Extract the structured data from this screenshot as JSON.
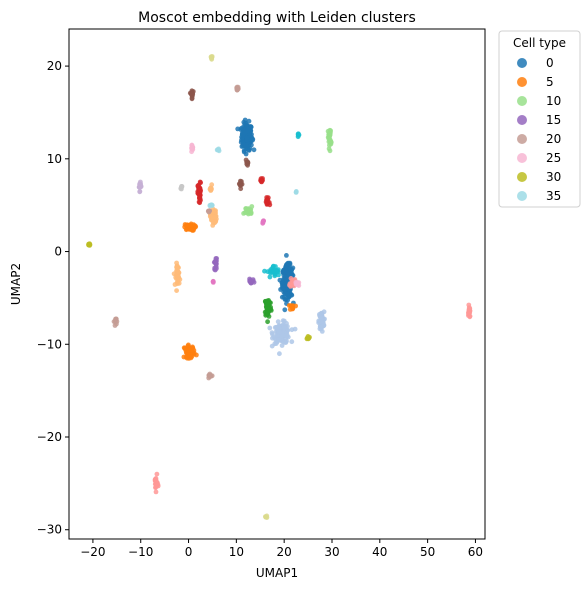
{
  "chart_data": {
    "type": "scatter",
    "title": "Moscot embedding with Leiden clusters",
    "xlabel": "UMAP1",
    "ylabel": "UMAP2",
    "xlim": [
      -25,
      62
    ],
    "ylim": [
      -31,
      24
    ],
    "xticks": [
      -20,
      -10,
      0,
      10,
      20,
      30,
      40,
      50,
      60
    ],
    "yticks": [
      -30,
      -20,
      -10,
      0,
      10,
      20
    ],
    "grid": false,
    "legend": {
      "title": "Cell type",
      "placement": "outside-top-right",
      "entries": [
        {
          "label": "0",
          "color": "#1f77b4"
        },
        {
          "label": "5",
          "color": "#ff7f0e"
        },
        {
          "label": "10",
          "color": "#98df8a"
        },
        {
          "label": "15",
          "color": "#9467bd"
        },
        {
          "label": "20",
          "color": "#c49c94"
        },
        {
          "label": "25",
          "color": "#f7b6d2"
        },
        {
          "label": "30",
          "color": "#bcbd22"
        },
        {
          "label": "35",
          "color": "#9edae5"
        }
      ]
    },
    "clusters": [
      {
        "color": "#1f77b4",
        "cx": 12.2,
        "cy": 12.4,
        "sx": 1.0,
        "sy": 1.3,
        "n": 200
      },
      {
        "color": "#1f77b4",
        "cx": 20.7,
        "cy": -3.3,
        "sx": 1.0,
        "sy": 1.6,
        "n": 230
      },
      {
        "color": "#aec7e8",
        "cx": 19.5,
        "cy": -8.8,
        "sx": 1.6,
        "sy": 1.0,
        "n": 110
      },
      {
        "color": "#aec7e8",
        "cx": 27.8,
        "cy": -7.5,
        "sx": 0.5,
        "sy": 0.9,
        "n": 60
      },
      {
        "color": "#2ca02c",
        "cx": 16.6,
        "cy": -6.0,
        "sx": 0.6,
        "sy": 1.0,
        "n": 60
      },
      {
        "color": "#17becf",
        "cx": 17.8,
        "cy": -2.2,
        "sx": 1.2,
        "sy": 0.6,
        "n": 30
      },
      {
        "color": "#ff9896",
        "cx": 21.8,
        "cy": -3.3,
        "sx": 0.5,
        "sy": 0.5,
        "n": 20
      },
      {
        "color": "#ff7f0e",
        "cx": 21.8,
        "cy": -6.0,
        "sx": 0.5,
        "sy": 0.3,
        "n": 10
      },
      {
        "color": "#bcbd22",
        "cx": 25.0,
        "cy": -9.2,
        "sx": 0.3,
        "sy": 0.2,
        "n": 8
      },
      {
        "color": "#ff7f0e",
        "cx": 0.2,
        "cy": 2.6,
        "sx": 1.0,
        "sy": 0.3,
        "n": 70
      },
      {
        "color": "#ffbb78",
        "cx": 5.2,
        "cy": 3.8,
        "sx": 0.6,
        "sy": 0.8,
        "n": 40
      },
      {
        "color": "#d62728",
        "cx": 2.3,
        "cy": 6.2,
        "sx": 0.3,
        "sy": 1.1,
        "n": 35
      },
      {
        "color": "#d62728",
        "cx": 16.5,
        "cy": 5.3,
        "sx": 0.4,
        "sy": 0.5,
        "n": 15
      },
      {
        "color": "#d62728",
        "cx": 15.3,
        "cy": 7.6,
        "sx": 0.3,
        "sy": 0.3,
        "n": 10
      },
      {
        "color": "#98df8a",
        "cx": 12.5,
        "cy": 4.4,
        "sx": 0.8,
        "sy": 0.4,
        "n": 25
      },
      {
        "color": "#98df8a",
        "cx": 29.5,
        "cy": 12.3,
        "sx": 0.3,
        "sy": 1.0,
        "n": 25
      },
      {
        "color": "#9467bd",
        "cx": 5.7,
        "cy": -1.3,
        "sx": 0.3,
        "sy": 0.6,
        "n": 15
      },
      {
        "color": "#9467bd",
        "cx": 13.0,
        "cy": -3.2,
        "sx": 0.6,
        "sy": 0.2,
        "n": 15
      },
      {
        "color": "#8c564b",
        "cx": 0.7,
        "cy": 17.0,
        "sx": 0.2,
        "sy": 0.4,
        "n": 20
      },
      {
        "color": "#8c564b",
        "cx": 11.0,
        "cy": 7.3,
        "sx": 0.4,
        "sy": 0.3,
        "n": 10
      },
      {
        "color": "#8c564b",
        "cx": 12.3,
        "cy": 9.5,
        "sx": 0.3,
        "sy": 0.3,
        "n": 8
      },
      {
        "color": "#f7b6d2",
        "cx": 0.7,
        "cy": 11.2,
        "sx": 0.2,
        "sy": 0.3,
        "n": 12
      },
      {
        "color": "#f7b6d2",
        "cx": 22.8,
        "cy": -3.5,
        "sx": 0.4,
        "sy": 0.2,
        "n": 10
      },
      {
        "color": "#ffbb78",
        "cx": -2.2,
        "cy": -2.5,
        "sx": 0.4,
        "sy": 1.1,
        "n": 40
      },
      {
        "color": "#ff7f0e",
        "cx": 0.2,
        "cy": -10.8,
        "sx": 1.0,
        "sy": 0.6,
        "n": 50
      },
      {
        "color": "#c49c94",
        "cx": 4.5,
        "cy": -13.4,
        "sx": 0.4,
        "sy": 0.15,
        "n": 12
      },
      {
        "color": "#c49c94",
        "cx": -15.2,
        "cy": -7.5,
        "sx": 0.3,
        "sy": 0.4,
        "n": 12
      },
      {
        "color": "#c49c94",
        "cx": 10.2,
        "cy": 17.5,
        "sx": 0.2,
        "sy": 0.3,
        "n": 10
      },
      {
        "color": "#c5b0d5",
        "cx": -10.2,
        "cy": 7.1,
        "sx": 0.2,
        "sy": 0.5,
        "n": 15
      },
      {
        "color": "#c7c7c7",
        "cx": -1.5,
        "cy": 6.9,
        "sx": 0.2,
        "sy": 0.2,
        "n": 6
      },
      {
        "color": "#ff9896",
        "cx": 58.7,
        "cy": -6.5,
        "sx": 0.15,
        "sy": 0.6,
        "n": 20
      },
      {
        "color": "#ff9896",
        "cx": -6.8,
        "cy": -25.0,
        "sx": 0.3,
        "sy": 0.7,
        "n": 25
      },
      {
        "color": "#e377c2",
        "cx": 15.6,
        "cy": 3.2,
        "sx": 0.15,
        "sy": 0.2,
        "n": 6
      },
      {
        "color": "#e377c2",
        "cx": 5.2,
        "cy": -3.3,
        "sx": 0.15,
        "sy": 0.15,
        "n": 4
      },
      {
        "color": "#bcbd22",
        "cx": -20.8,
        "cy": 0.8,
        "sx": 0.2,
        "sy": 0.2,
        "n": 8
      },
      {
        "color": "#dbdb8d",
        "cx": 4.8,
        "cy": 21.0,
        "sx": 0.2,
        "sy": 0.2,
        "n": 6
      },
      {
        "color": "#dbdb8d",
        "cx": 16.2,
        "cy": -28.6,
        "sx": 0.2,
        "sy": 0.15,
        "n": 5
      },
      {
        "color": "#17becf",
        "cx": 23.0,
        "cy": 12.4,
        "sx": 0.15,
        "sy": 0.2,
        "n": 6
      },
      {
        "color": "#9edae5",
        "cx": 22.5,
        "cy": 6.4,
        "sx": 0.1,
        "sy": 0.1,
        "n": 3
      },
      {
        "color": "#9edae5",
        "cx": 6.2,
        "cy": 11.0,
        "sx": 0.3,
        "sy": 0.1,
        "n": 6
      },
      {
        "color": "#9edae5",
        "cx": 4.9,
        "cy": 5.0,
        "sx": 0.3,
        "sy": 0.2,
        "n": 6
      },
      {
        "color": "#ffbb78",
        "cx": 4.7,
        "cy": 6.7,
        "sx": 0.15,
        "sy": 0.4,
        "n": 8
      },
      {
        "color": "#c49c94",
        "cx": 4.3,
        "cy": 4.3,
        "sx": 0.2,
        "sy": 0.2,
        "n": 5
      }
    ]
  }
}
